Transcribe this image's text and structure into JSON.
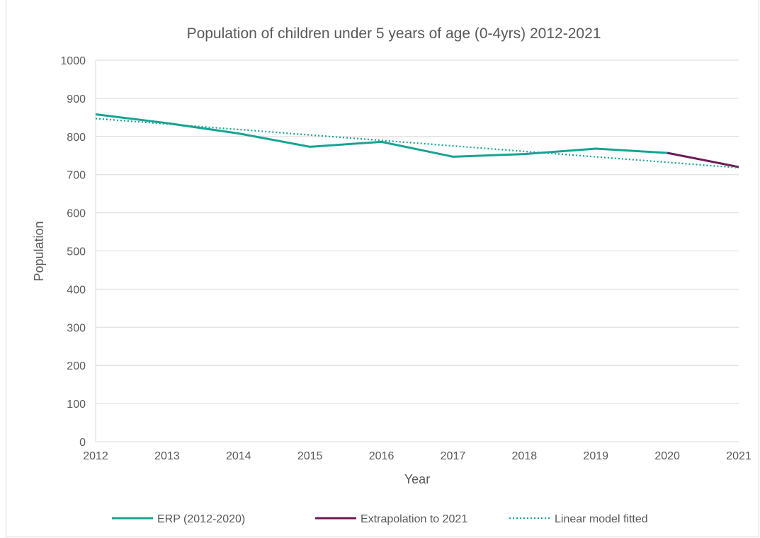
{
  "chart_data": {
    "type": "line",
    "title": "Population of children under 5 years of age (0-4yrs) 2012-2021",
    "xlabel": "Year",
    "ylabel": "Population",
    "ylim": [
      0,
      1000
    ],
    "yticks": [
      0,
      100,
      200,
      300,
      400,
      500,
      600,
      700,
      800,
      900,
      1000
    ],
    "x": [
      2012,
      2013,
      2014,
      2015,
      2016,
      2017,
      2018,
      2019,
      2020,
      2021
    ],
    "grid": true,
    "legend_position": "bottom",
    "series": [
      {
        "name": "ERP (2012-2020)",
        "style": "solid",
        "color": "#17a393",
        "x": [
          2012,
          2013,
          2014,
          2015,
          2016,
          2017,
          2018,
          2019,
          2020
        ],
        "values": [
          858,
          835,
          808,
          773,
          786,
          747,
          754,
          768,
          757
        ]
      },
      {
        "name": "Extrapolation to 2021",
        "style": "solid",
        "color": "#6d1a55",
        "x": [
          2020,
          2021
        ],
        "values": [
          757,
          720
        ]
      },
      {
        "name": "Linear model fitted",
        "style": "dotted",
        "color": "#17a393",
        "x": [
          2012,
          2021
        ],
        "values": [
          847,
          718
        ]
      }
    ]
  }
}
